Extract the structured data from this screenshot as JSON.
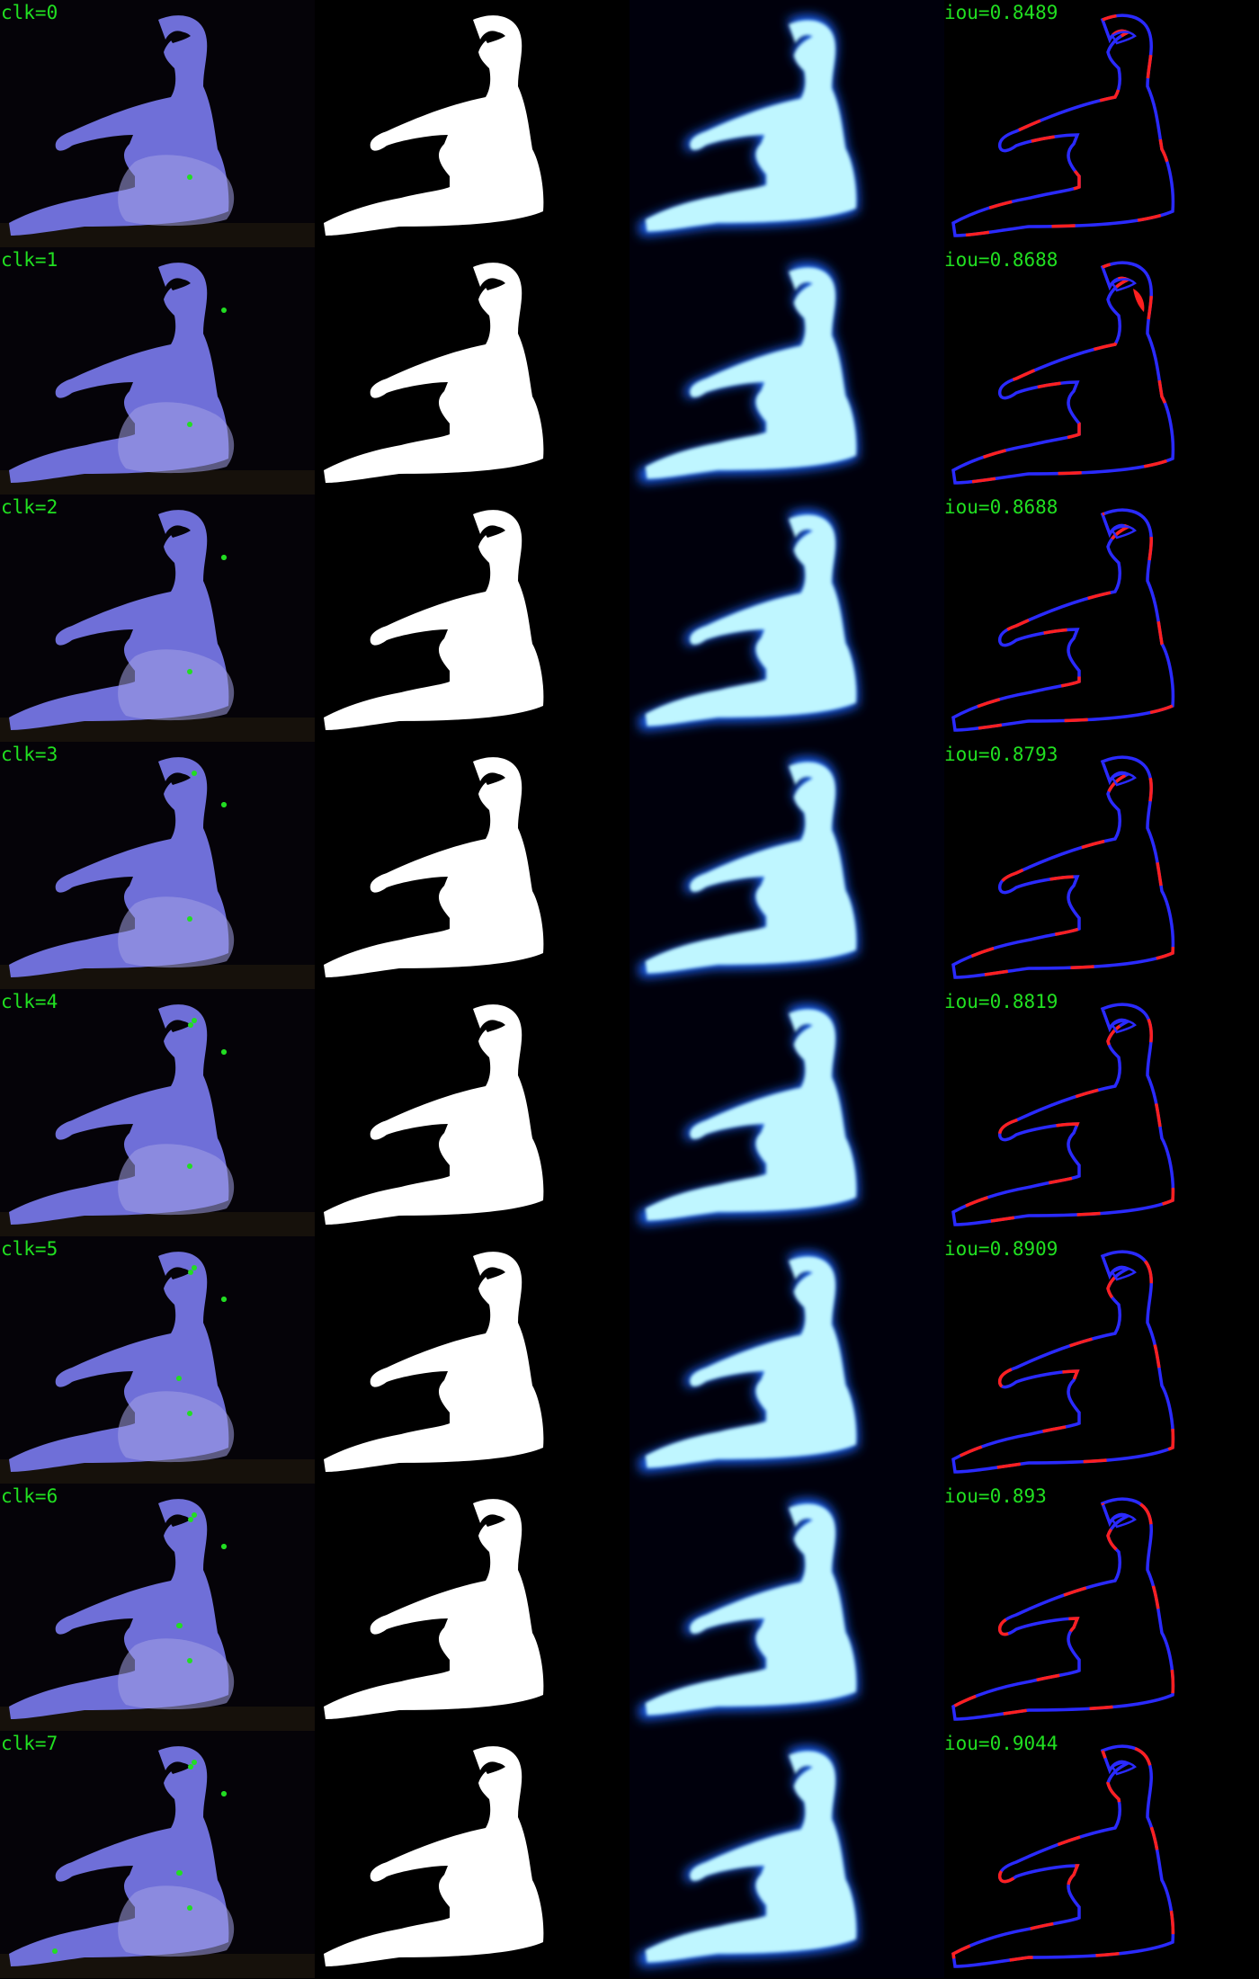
{
  "rows": [
    {
      "clk_label": "clk=0",
      "iou_label": "iou=0.8489",
      "clicks": 1,
      "iou": 0.8489
    },
    {
      "clk_label": "clk=1",
      "iou_label": "iou=0.8688",
      "clicks": 2,
      "iou": 0.8688
    },
    {
      "clk_label": "clk=2",
      "iou_label": "iou=0.8688",
      "clicks": 3,
      "iou": 0.8688
    },
    {
      "clk_label": "clk=3",
      "iou_label": "iou=0.8793",
      "clicks": 4,
      "iou": 0.8793
    },
    {
      "clk_label": "clk=4",
      "iou_label": "iou=0.8819",
      "clicks": 5,
      "iou": 0.8819
    },
    {
      "clk_label": "clk=5",
      "iou_label": "iou=0.8909",
      "clicks": 6,
      "iou": 0.8909
    },
    {
      "clk_label": "clk=6",
      "iou_label": "iou=0.893",
      "clicks": 7,
      "iou": 0.893
    },
    {
      "clk_label": "clk=7",
      "iou_label": "iou=0.9044",
      "clicks": 8,
      "iou": 0.9044
    }
  ],
  "colors": {
    "label": "#21e021",
    "overlay": "#6f6fd8",
    "mask": "#ffffff",
    "prob_glow": "#1a66ff",
    "prob_core": "#bff6ff",
    "error_fn": "#2a2aff",
    "error_fp": "#ff2020",
    "click_point": "#22dd22"
  }
}
